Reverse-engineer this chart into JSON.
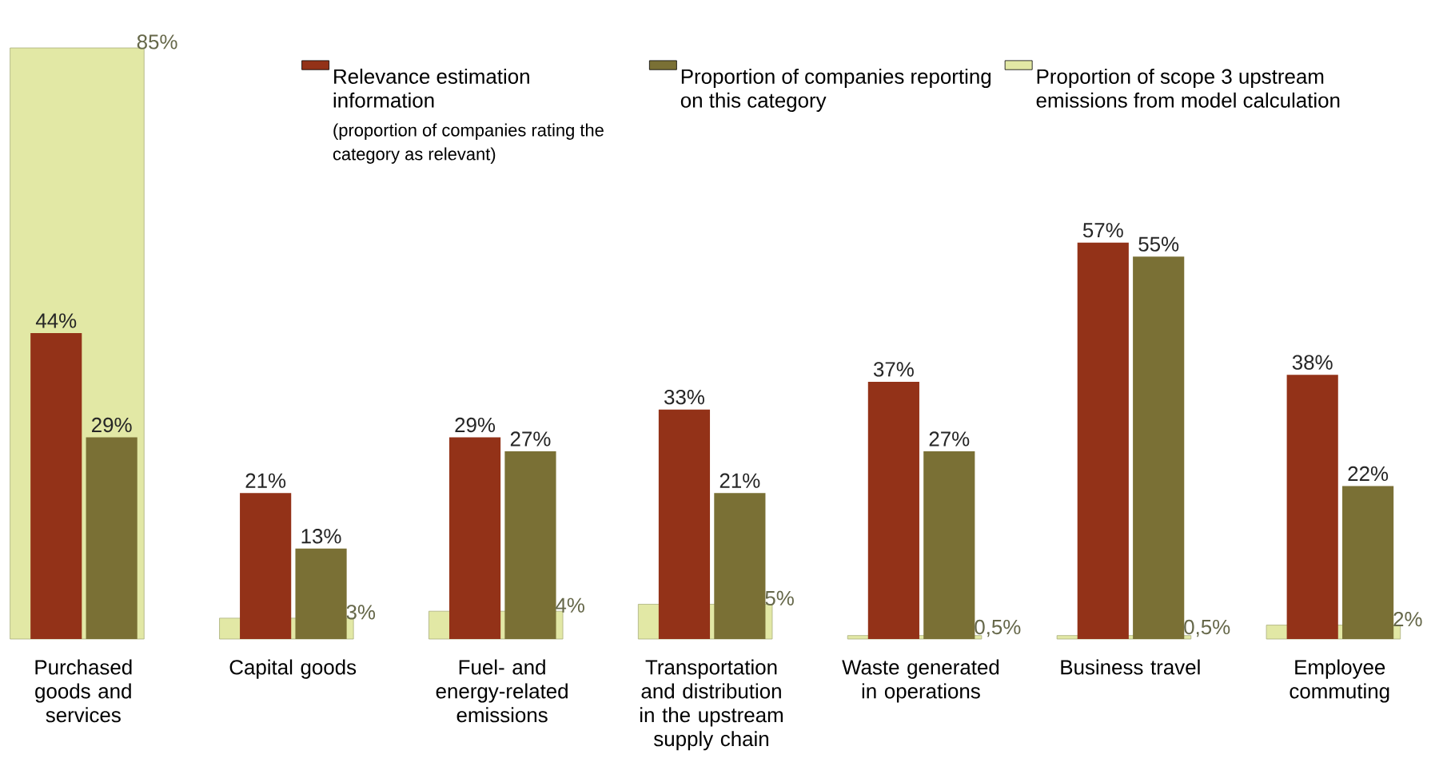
{
  "chart_data": {
    "type": "bar",
    "categories": [
      "Purchased goods and services",
      "Capital goods",
      "Fuel- and energy-related emissions",
      "Transportation and distribution in the upstream supply chain",
      "Waste generated in operations",
      "Business travel",
      "Employee commuting"
    ],
    "series": [
      {
        "name": "Relevance estimation information",
        "color": "#933218",
        "values": [
          44,
          21,
          29,
          33,
          37,
          57,
          38
        ],
        "value_labels": [
          "44%",
          "21%",
          "29%",
          "33%",
          "37%",
          "57%",
          "38%"
        ]
      },
      {
        "name": "Proportion of companies reporting on this category",
        "color": "#7a7035",
        "values": [
          29,
          13,
          27,
          21,
          27,
          55,
          22
        ],
        "value_labels": [
          "29%",
          "13%",
          "27%",
          "21%",
          "27%",
          "55%",
          "22%"
        ]
      },
      {
        "name": "Proportion of scope 3 upstream emissions from model calculation",
        "color": "#e2e8a5",
        "values": [
          85,
          3,
          4,
          5,
          0.5,
          0.5,
          2
        ],
        "value_labels": [
          "85%",
          "3%",
          "4%",
          "5%",
          "0,5%",
          "0,5%",
          "2%"
        ]
      }
    ],
    "annotations": [
      "(proportion of companies rating the category as relevant)"
    ],
    "legend": "top"
  }
}
